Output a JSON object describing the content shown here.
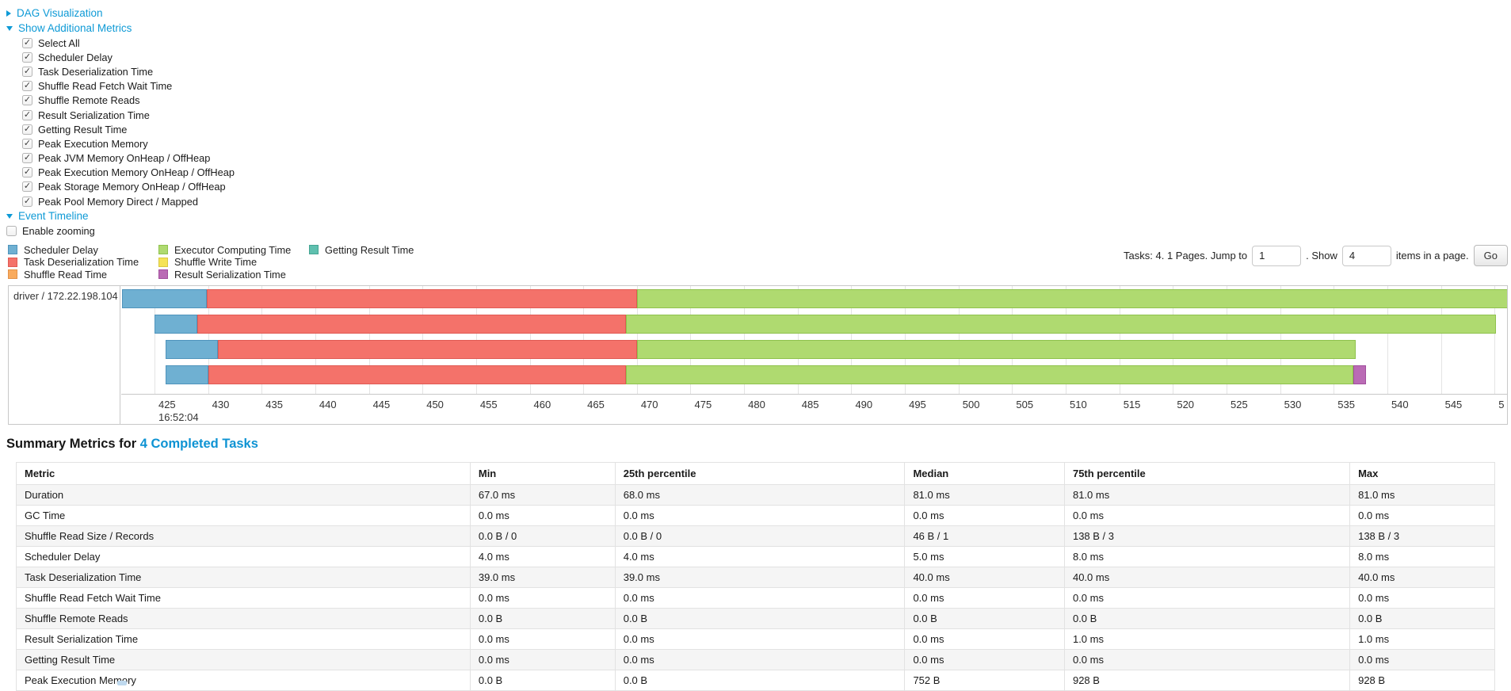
{
  "controls": {
    "dag_link": "DAG Visualization",
    "metrics_link": "Show Additional Metrics",
    "metrics_items": [
      {
        "label": "Select All",
        "checked": true
      },
      {
        "label": "Scheduler Delay",
        "checked": true
      },
      {
        "label": "Task Deserialization Time",
        "checked": true
      },
      {
        "label": "Shuffle Read Fetch Wait Time",
        "checked": true
      },
      {
        "label": "Shuffle Remote Reads",
        "checked": true
      },
      {
        "label": "Result Serialization Time",
        "checked": true
      },
      {
        "label": "Getting Result Time",
        "checked": true
      },
      {
        "label": "Peak Execution Memory",
        "checked": true
      },
      {
        "label": "Peak JVM Memory OnHeap / OffHeap",
        "checked": true
      },
      {
        "label": "Peak Execution Memory OnHeap / OffHeap",
        "checked": true
      },
      {
        "label": "Peak Storage Memory OnHeap / OffHeap",
        "checked": true
      },
      {
        "label": "Peak Pool Memory Direct / Mapped",
        "checked": true
      }
    ],
    "timeline_link": "Event Timeline",
    "enable_zooming": {
      "label": "Enable zooming",
      "checked": false
    }
  },
  "pagination": {
    "prefix": "Tasks: 4. 1 Pages. Jump to",
    "jump_value": "1",
    "mid": ". Show",
    "show_value": "4",
    "suffix": "items in a page.",
    "go_label": "Go"
  },
  "timeline": {
    "colors": {
      "scheduler_delay": {
        "fill": "#6fb0d2",
        "border": "#4f94bc"
      },
      "task_deserialization": {
        "fill": "#f4726a",
        "border": "#e05a54"
      },
      "shuffle_read": {
        "fill": "#f9ab5e",
        "border": "#e2924a"
      },
      "executor_computing": {
        "fill": "#afda70",
        "border": "#8fc24d"
      },
      "shuffle_write": {
        "fill": "#f5e356",
        "border": "#d9c83f"
      },
      "getting_result": {
        "fill": "#5fc0af",
        "border": "#45a593"
      },
      "result_serialization": {
        "fill": "#ba6bb5",
        "border": "#a14f9d"
      }
    },
    "legend_columns": [
      [
        {
          "key": "scheduler_delay",
          "label": "Scheduler Delay"
        },
        {
          "key": "task_deserialization",
          "label": "Task Deserialization Time"
        },
        {
          "key": "shuffle_read",
          "label": "Shuffle Read Time"
        }
      ],
      [
        {
          "key": "executor_computing",
          "label": "Executor Computing Time"
        },
        {
          "key": "shuffle_write",
          "label": "Shuffle Write Time"
        },
        {
          "key": "result_serialization",
          "label": "Result Serialization Time"
        }
      ],
      [
        {
          "key": "getting_result",
          "label": "Getting Result Time"
        }
      ]
    ],
    "row_label": "driver / 172.22.198.104",
    "chart_data": {
      "type": "timeline",
      "axis": {
        "ticks": [
          "425",
          "430",
          "435",
          "440",
          "445",
          "450",
          "455",
          "460",
          "465",
          "470",
          "475",
          "480",
          "485",
          "490",
          "495",
          "500",
          "505",
          "510",
          "515",
          "520",
          "525",
          "530",
          "535",
          "540",
          "545",
          "5"
        ],
        "sub_label": "16:52:04",
        "first_tick_pct": 2.4,
        "step_pct": 3.868
      },
      "rows": [
        {
          "segments": [
            {
              "metric": "scheduler_delay",
              "start_pct": 0.05,
              "end_pct": 6.2
            },
            {
              "metric": "task_deserialization",
              "start_pct": 6.2,
              "end_pct": 37.2
            },
            {
              "metric": "executor_computing",
              "start_pct": 37.2,
              "end_pct": 100.1
            }
          ]
        },
        {
          "segments": [
            {
              "metric": "scheduler_delay",
              "start_pct": 2.4,
              "end_pct": 5.5
            },
            {
              "metric": "task_deserialization",
              "start_pct": 5.5,
              "end_pct": 36.4
            },
            {
              "metric": "executor_computing",
              "start_pct": 36.4,
              "end_pct": 99.2
            }
          ]
        },
        {
          "segments": [
            {
              "metric": "scheduler_delay",
              "start_pct": 3.2,
              "end_pct": 7.0
            },
            {
              "metric": "task_deserialization",
              "start_pct": 7.0,
              "end_pct": 37.2
            },
            {
              "metric": "executor_computing",
              "start_pct": 37.2,
              "end_pct": 89.1
            }
          ]
        },
        {
          "segments": [
            {
              "metric": "scheduler_delay",
              "start_pct": 3.2,
              "end_pct": 6.3
            },
            {
              "metric": "task_deserialization",
              "start_pct": 6.3,
              "end_pct": 36.4
            },
            {
              "metric": "executor_computing",
              "start_pct": 36.4,
              "end_pct": 88.9
            },
            {
              "metric": "result_serialization",
              "start_pct": 88.9,
              "end_pct": 89.8
            }
          ]
        }
      ]
    }
  },
  "summary": {
    "title_prefix": "Summary Metrics for ",
    "title_link": "4 Completed Tasks"
  },
  "table": {
    "headers": [
      "Metric",
      "Min",
      "25th percentile",
      "Median",
      "75th percentile",
      "Max"
    ],
    "rows": [
      [
        "Duration",
        "67.0 ms",
        "68.0 ms",
        "81.0 ms",
        "81.0 ms",
        "81.0 ms"
      ],
      [
        "GC Time",
        "0.0 ms",
        "0.0 ms",
        "0.0 ms",
        "0.0 ms",
        "0.0 ms"
      ],
      [
        "Shuffle Read Size / Records",
        "0.0 B / 0",
        "0.0 B / 0",
        "46 B / 1",
        "138 B / 3",
        "138 B / 3"
      ],
      [
        "Scheduler Delay",
        "4.0 ms",
        "4.0 ms",
        "5.0 ms",
        "8.0 ms",
        "8.0 ms"
      ],
      [
        "Task Deserialization Time",
        "39.0 ms",
        "39.0 ms",
        "40.0 ms",
        "40.0 ms",
        "40.0 ms"
      ],
      [
        "Shuffle Read Fetch Wait Time",
        "0.0 ms",
        "0.0 ms",
        "0.0 ms",
        "0.0 ms",
        "0.0 ms"
      ],
      [
        "Shuffle Remote Reads",
        "0.0 B",
        "0.0 B",
        "0.0 B",
        "0.0 B",
        "0.0 B"
      ],
      [
        "Result Serialization Time",
        "0.0 ms",
        "0.0 ms",
        "0.0 ms",
        "1.0 ms",
        "1.0 ms"
      ],
      [
        "Getting Result Time",
        "0.0 ms",
        "0.0 ms",
        "0.0 ms",
        "0.0 ms",
        "0.0 ms"
      ],
      [
        "Peak Execution Memory",
        "0.0 B",
        "0.0 B",
        "752 B",
        "928 B",
        "928 B"
      ]
    ]
  }
}
